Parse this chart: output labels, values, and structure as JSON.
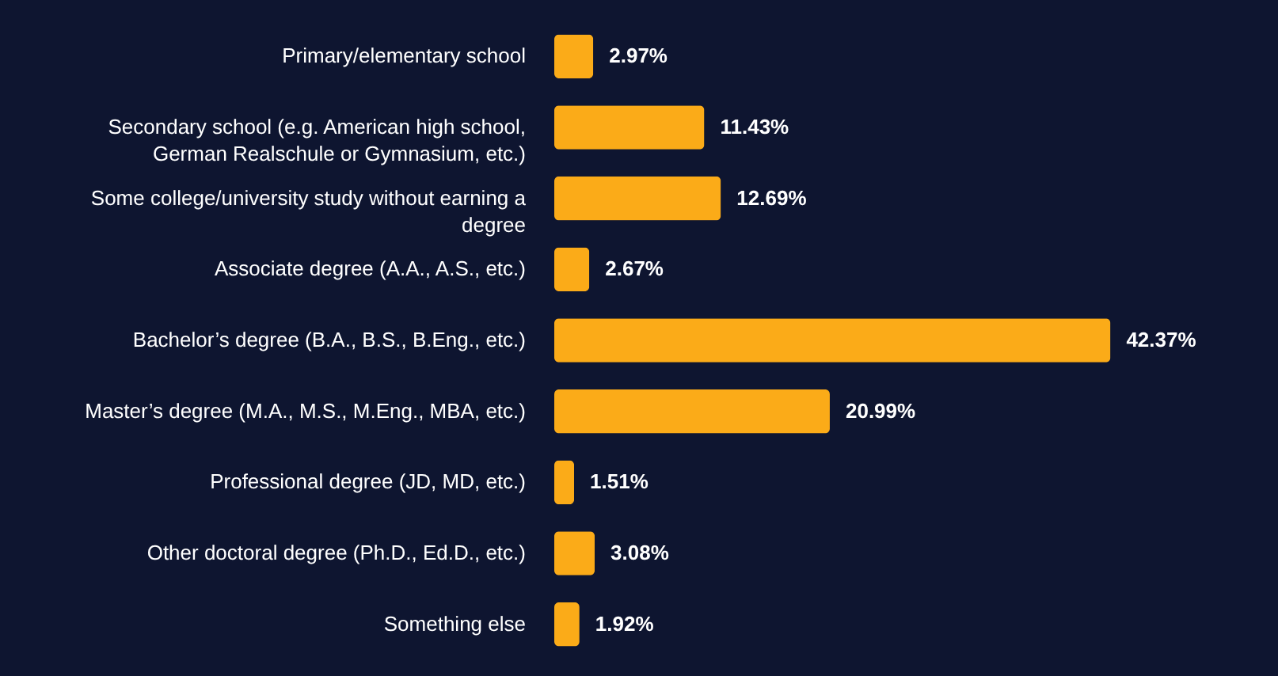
{
  "chart_data": {
    "type": "bar",
    "orientation": "horizontal",
    "categories": [
      "Primary/elementary school",
      "Secondary school (e.g. American high school, German Realschule or Gymnasium, etc.)",
      "Some college/university study without earning a degree",
      "Associate degree (A.A., A.S., etc.)",
      "Bachelor’s degree (B.A., B.S., B.Eng., etc.)",
      "Master’s degree (M.A., M.S., M.Eng., MBA, etc.)",
      "Professional degree (JD, MD, etc.)",
      "Other doctoral degree (Ph.D., Ed.D., etc.)",
      "Something else"
    ],
    "values": [
      2.97,
      11.43,
      12.69,
      2.67,
      42.37,
      20.99,
      1.51,
      3.08,
      1.92
    ],
    "value_labels": [
      "2.97%",
      "11.43%",
      "12.69%",
      "2.67%",
      "42.37%",
      "20.99%",
      "1.51%",
      "3.08%",
      "1.92%"
    ],
    "color": "#fbab18"
  }
}
